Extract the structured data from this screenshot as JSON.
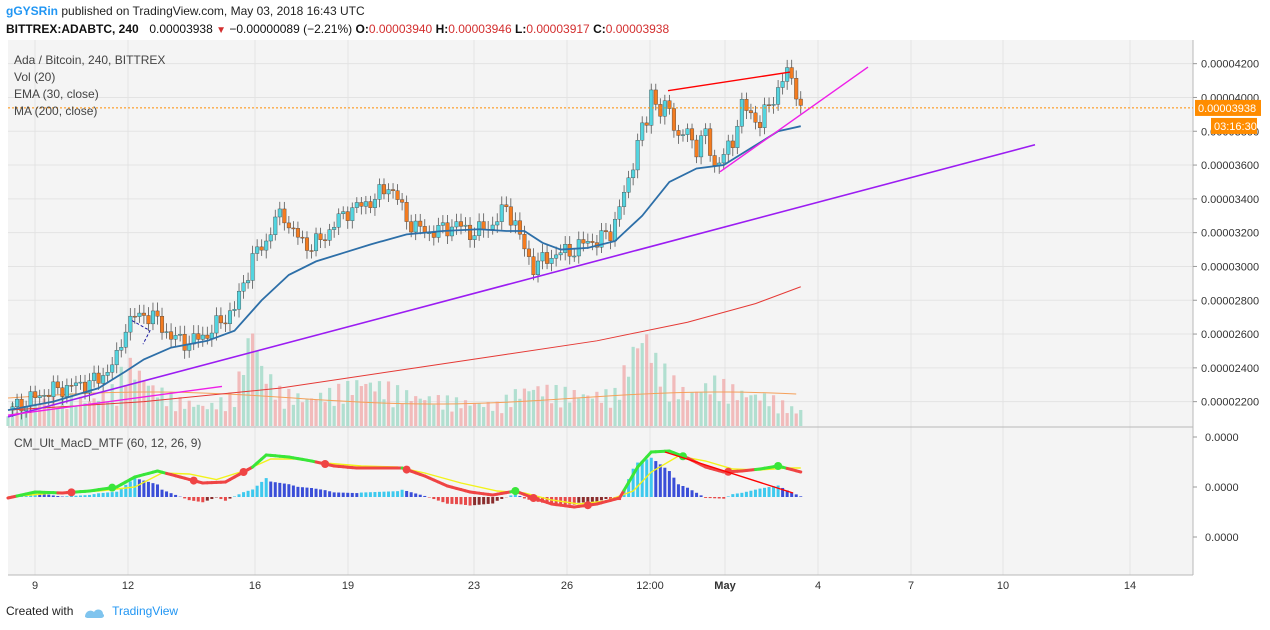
{
  "header": {
    "user": "gGYSRin",
    "published_text": "published on TradingView.com, May 03, 2018 16:43 UTC",
    "symbol_line": "BITTREX:ADABTC, 240",
    "last": "0.00003938",
    "change": "−0.00000089 (−2.21%)",
    "o_label": "O:",
    "o_value": "0.00003940",
    "h_label": "H:",
    "h_value": "0.00003946",
    "l_label": "L:",
    "l_value": "0.00003917",
    "c_label": "C:",
    "c_value": "0.00003938"
  },
  "legend": {
    "title": "Ada / Bitcoin, 240, BITTREX",
    "vol": "Vol (20)",
    "ema": "EMA (30, close)",
    "ma": "MA (200, close)",
    "macd": "CM_Ult_MacD_MTF (60, 12, 26, 9)"
  },
  "price_badge": "0.00003938",
  "countdown_badge": "03:16:30",
  "footer": {
    "created_with": "Created with",
    "brand": "TradingView"
  },
  "colors": {
    "up": "#53d5e0",
    "down": "#f47c20",
    "ema": "#2d6fa8",
    "ma": "#e53935",
    "trend_purple": "#9b1cf2",
    "trend_magenta": "#ee1ee8",
    "divergence": "#ff0000",
    "macd_up": "#39e639",
    "macd_down": "#ef4444",
    "signal": "#f2f21a",
    "hist_up_strong": "#3ec9ee",
    "hist_up_weak": "#3a4ed8",
    "hist_down_strong": "#e74a4a",
    "hist_down_weak": "#8a2d2d",
    "badge": "#ff8c00"
  },
  "chart_data": [
    {
      "type": "candlestick",
      "title": "Ada / Bitcoin, 240, BITTREX",
      "x_ticks": [
        "9",
        "12",
        "16",
        "19",
        "23",
        "26",
        "12:00",
        "May",
        "4",
        "7",
        "10",
        "14"
      ],
      "y_ticks": [
        "0.00004200",
        "0.00004000",
        "0.00003800",
        "0.00003600",
        "0.00003400",
        "0.00003200",
        "0.00003000",
        "0.00002800",
        "0.00002600",
        "0.00002400",
        "0.00002200"
      ],
      "ylim": [
        2.05e-05,
        4.34e-05
      ],
      "last_price": 3.938e-05,
      "indicators": [
        "Vol (20)",
        "EMA (30, close)",
        "MA (200, close)"
      ],
      "close_path": [
        [
          0,
          2.15e-05
        ],
        [
          4,
          2.2e-05
        ],
        [
          8,
          2.25e-05
        ],
        [
          12,
          2.28e-05
        ],
        [
          16,
          2.3e-05
        ],
        [
          20,
          2.33e-05
        ],
        [
          24,
          2.45e-05
        ],
        [
          26,
          2.65e-05
        ],
        [
          28,
          2.7e-05
        ],
        [
          30,
          2.72e-05
        ],
        [
          33,
          2.68e-05
        ],
        [
          36,
          2.58e-05
        ],
        [
          40,
          2.55e-05
        ],
        [
          44,
          2.6e-05
        ],
        [
          48,
          2.7e-05
        ],
        [
          50,
          2.75e-05
        ],
        [
          52,
          2.9e-05
        ],
        [
          54,
          3.05e-05
        ],
        [
          57,
          3.15e-05
        ],
        [
          59,
          3.28e-05
        ],
        [
          61,
          3.3e-05
        ],
        [
          63,
          3.2e-05
        ],
        [
          66,
          3.12e-05
        ],
        [
          69,
          3.15e-05
        ],
        [
          72,
          3.25e-05
        ],
        [
          75,
          3.33e-05
        ],
        [
          78,
          3.36e-05
        ],
        [
          81,
          3.4e-05
        ],
        [
          84,
          3.48e-05
        ],
        [
          86,
          3.4e-05
        ],
        [
          88,
          3.28e-05
        ],
        [
          90,
          3.23e-05
        ],
        [
          93,
          3.2e-05
        ],
        [
          96,
          3.22e-05
        ],
        [
          99,
          3.25e-05
        ],
        [
          102,
          3.2e-05
        ],
        [
          104,
          3.21e-05
        ],
        [
          107,
          3.25e-05
        ],
        [
          110,
          3.35e-05
        ],
        [
          112,
          3.25e-05
        ],
        [
          114,
          3.1e-05
        ],
        [
          116,
          3e-05
        ],
        [
          119,
          3.05e-05
        ],
        [
          122,
          3.08e-05
        ],
        [
          125,
          3.1e-05
        ],
        [
          128,
          3.15e-05
        ],
        [
          130,
          3.15e-05
        ],
        [
          133,
          3.2e-05
        ],
        [
          135,
          3.35e-05
        ],
        [
          137,
          3.5e-05
        ],
        [
          139,
          3.75e-05
        ],
        [
          141,
          3.85e-05
        ],
        [
          142,
          4.05e-05
        ],
        [
          144,
          3.9e-05
        ],
        [
          146,
          3.95e-05
        ],
        [
          148,
          3.75e-05
        ],
        [
          150,
          3.8e-05
        ],
        [
          152,
          3.7e-05
        ],
        [
          154,
          3.78e-05
        ],
        [
          156,
          3.6e-05
        ],
        [
          158,
          3.65e-05
        ],
        [
          160,
          3.75e-05
        ],
        [
          162,
          3.95e-05
        ],
        [
          164,
          3.9e-05
        ],
        [
          166,
          3.85e-05
        ],
        [
          168,
          3.95e-05
        ],
        [
          170,
          4.05e-05
        ],
        [
          172,
          4.15e-05
        ],
        [
          174,
          4.05e-05
        ],
        [
          175,
          3.938e-05
        ]
      ],
      "ema_30": [
        [
          0,
          2.15e-05
        ],
        [
          10,
          2.2e-05
        ],
        [
          20,
          2.28e-05
        ],
        [
          26,
          2.38e-05
        ],
        [
          30,
          2.45e-05
        ],
        [
          36,
          2.52e-05
        ],
        [
          44,
          2.56e-05
        ],
        [
          50,
          2.62e-05
        ],
        [
          56,
          2.8e-05
        ],
        [
          62,
          2.95e-05
        ],
        [
          68,
          3.03e-05
        ],
        [
          74,
          3.08e-05
        ],
        [
          80,
          3.13e-05
        ],
        [
          88,
          3.19e-05
        ],
        [
          96,
          3.21e-05
        ],
        [
          104,
          3.22e-05
        ],
        [
          110,
          3.21e-05
        ],
        [
          114,
          3.21e-05
        ],
        [
          118,
          3.14e-05
        ],
        [
          122,
          3.1e-05
        ],
        [
          128,
          3.11e-05
        ],
        [
          134,
          3.15e-05
        ],
        [
          140,
          3.3e-05
        ],
        [
          146,
          3.5e-05
        ],
        [
          152,
          3.58e-05
        ],
        [
          158,
          3.6e-05
        ],
        [
          164,
          3.7e-05
        ],
        [
          170,
          3.8e-05
        ],
        [
          175,
          3.83e-05
        ]
      ],
      "ma_200": [
        [
          0,
          2.15e-05
        ],
        [
          30,
          2.2e-05
        ],
        [
          60,
          2.28e-05
        ],
        [
          90,
          2.4e-05
        ],
        [
          110,
          2.48e-05
        ],
        [
          130,
          2.56e-05
        ],
        [
          150,
          2.67e-05
        ],
        [
          165,
          2.78e-05
        ],
        [
          175,
          2.88e-05
        ]
      ]
    },
    {
      "type": "bar",
      "title": "Vol (20)",
      "x": [
        0,
        6,
        12,
        18,
        24,
        26,
        28,
        32,
        38,
        44,
        50,
        54,
        56,
        60,
        66,
        72,
        78,
        84,
        90,
        96,
        102,
        108,
        112,
        116,
        122,
        128,
        134,
        139,
        141,
        143,
        146,
        150,
        156,
        162,
        168,
        174
      ],
      "values": [
        1.0,
        1.2,
        1.6,
        1.3,
        2.0,
        3.3,
        3.0,
        2.0,
        1.3,
        1.0,
        1.6,
        5.2,
        3.0,
        1.8,
        1.4,
        1.8,
        2.3,
        2.0,
        1.5,
        1.4,
        1.2,
        1.1,
        1.7,
        2.0,
        1.8,
        1.6,
        1.7,
        4.4,
        4.6,
        3.4,
        2.5,
        1.6,
        2.3,
        1.7,
        1.5,
        0.8
      ],
      "ylim": [
        0,
        8
      ]
    },
    {
      "type": "line",
      "title": "CM_Ult_MacD_MTF (60, 12, 26, 9)",
      "y_ticks": [
        "0.0000",
        "0.0000",
        "0.0000"
      ],
      "ylim": [
        -0.6,
        1.0
      ],
      "macd_line": [
        [
          0,
          -0.02
        ],
        [
          6,
          0.1
        ],
        [
          12,
          0.08
        ],
        [
          18,
          0.12
        ],
        [
          24,
          0.2
        ],
        [
          28,
          0.4
        ],
        [
          33,
          0.52
        ],
        [
          38,
          0.4
        ],
        [
          43,
          0.28
        ],
        [
          48,
          0.3
        ],
        [
          54,
          0.6
        ],
        [
          57,
          0.84
        ],
        [
          62,
          0.8
        ],
        [
          67,
          0.72
        ],
        [
          72,
          0.62
        ],
        [
          77,
          0.58
        ],
        [
          82,
          0.58
        ],
        [
          87,
          0.58
        ],
        [
          92,
          0.42
        ],
        [
          97,
          0.22
        ],
        [
          102,
          0.1
        ],
        [
          107,
          0.04
        ],
        [
          112,
          0.12
        ],
        [
          116,
          -0.02
        ],
        [
          120,
          -0.14
        ],
        [
          125,
          -0.2
        ],
        [
          130,
          -0.14
        ],
        [
          135,
          -0.02
        ],
        [
          139,
          0.6
        ],
        [
          142,
          0.9
        ],
        [
          146,
          0.92
        ],
        [
          150,
          0.78
        ],
        [
          154,
          0.6
        ],
        [
          158,
          0.5
        ],
        [
          162,
          0.52
        ],
        [
          166,
          0.56
        ],
        [
          170,
          0.62
        ],
        [
          175,
          0.5
        ]
      ],
      "signal_line": [
        [
          0,
          0.0
        ],
        [
          10,
          0.08
        ],
        [
          20,
          0.12
        ],
        [
          28,
          0.2
        ],
        [
          34,
          0.48
        ],
        [
          40,
          0.46
        ],
        [
          46,
          0.35
        ],
        [
          52,
          0.52
        ],
        [
          58,
          0.76
        ],
        [
          64,
          0.76
        ],
        [
          70,
          0.68
        ],
        [
          78,
          0.62
        ],
        [
          86,
          0.6
        ],
        [
          92,
          0.48
        ],
        [
          100,
          0.28
        ],
        [
          108,
          0.12
        ],
        [
          114,
          0.08
        ],
        [
          120,
          -0.06
        ],
        [
          126,
          -0.14
        ],
        [
          132,
          -0.08
        ],
        [
          138,
          0.12
        ],
        [
          142,
          0.5
        ],
        [
          148,
          0.82
        ],
        [
          154,
          0.72
        ],
        [
          160,
          0.56
        ],
        [
          166,
          0.54
        ],
        [
          172,
          0.58
        ],
        [
          175,
          0.58
        ]
      ],
      "crosses": [
        14,
        23,
        41,
        52,
        70,
        88,
        112,
        116,
        128,
        149,
        159,
        170
      ]
    }
  ]
}
